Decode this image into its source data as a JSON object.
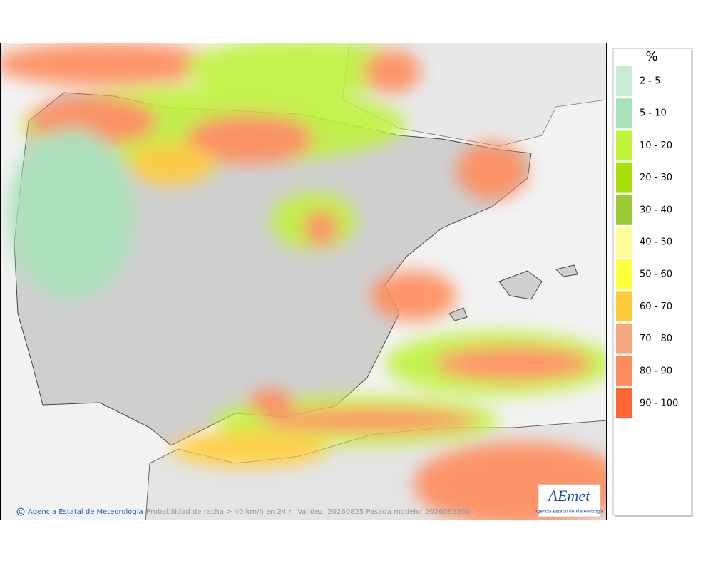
{
  "legend": {
    "title": "%",
    "items": [
      {
        "label": "2 - 5",
        "color": "#c6ecd3"
      },
      {
        "label": "5 - 10",
        "color": "#a9e2b9"
      },
      {
        "label": "10 - 20",
        "color": "#c0f23c"
      },
      {
        "label": "20 - 30",
        "color": "#a8e00c"
      },
      {
        "label": "30 - 40",
        "color": "#9acb35"
      },
      {
        "label": "40 - 50",
        "color": "#ffff9a"
      },
      {
        "label": "50 - 60",
        "color": "#ffff3a"
      },
      {
        "label": "60 - 70",
        "color": "#ffcc3a"
      },
      {
        "label": "70 - 80",
        "color": "#f5a97c"
      },
      {
        "label": "80 - 90",
        "color": "#ff8c5c"
      },
      {
        "label": "90 - 100",
        "color": "#ff6634"
      }
    ]
  },
  "footer": {
    "credit": "Agencia Estatal de Meteorología",
    "caption": "Probabilidad de racha > 40 km/h en 24 h. Validez: 20260825 Pasada modelo: 2026082300"
  },
  "logo": {
    "name": "AEmet",
    "subtitle": "Agencia Estatal de Meteorología"
  }
}
